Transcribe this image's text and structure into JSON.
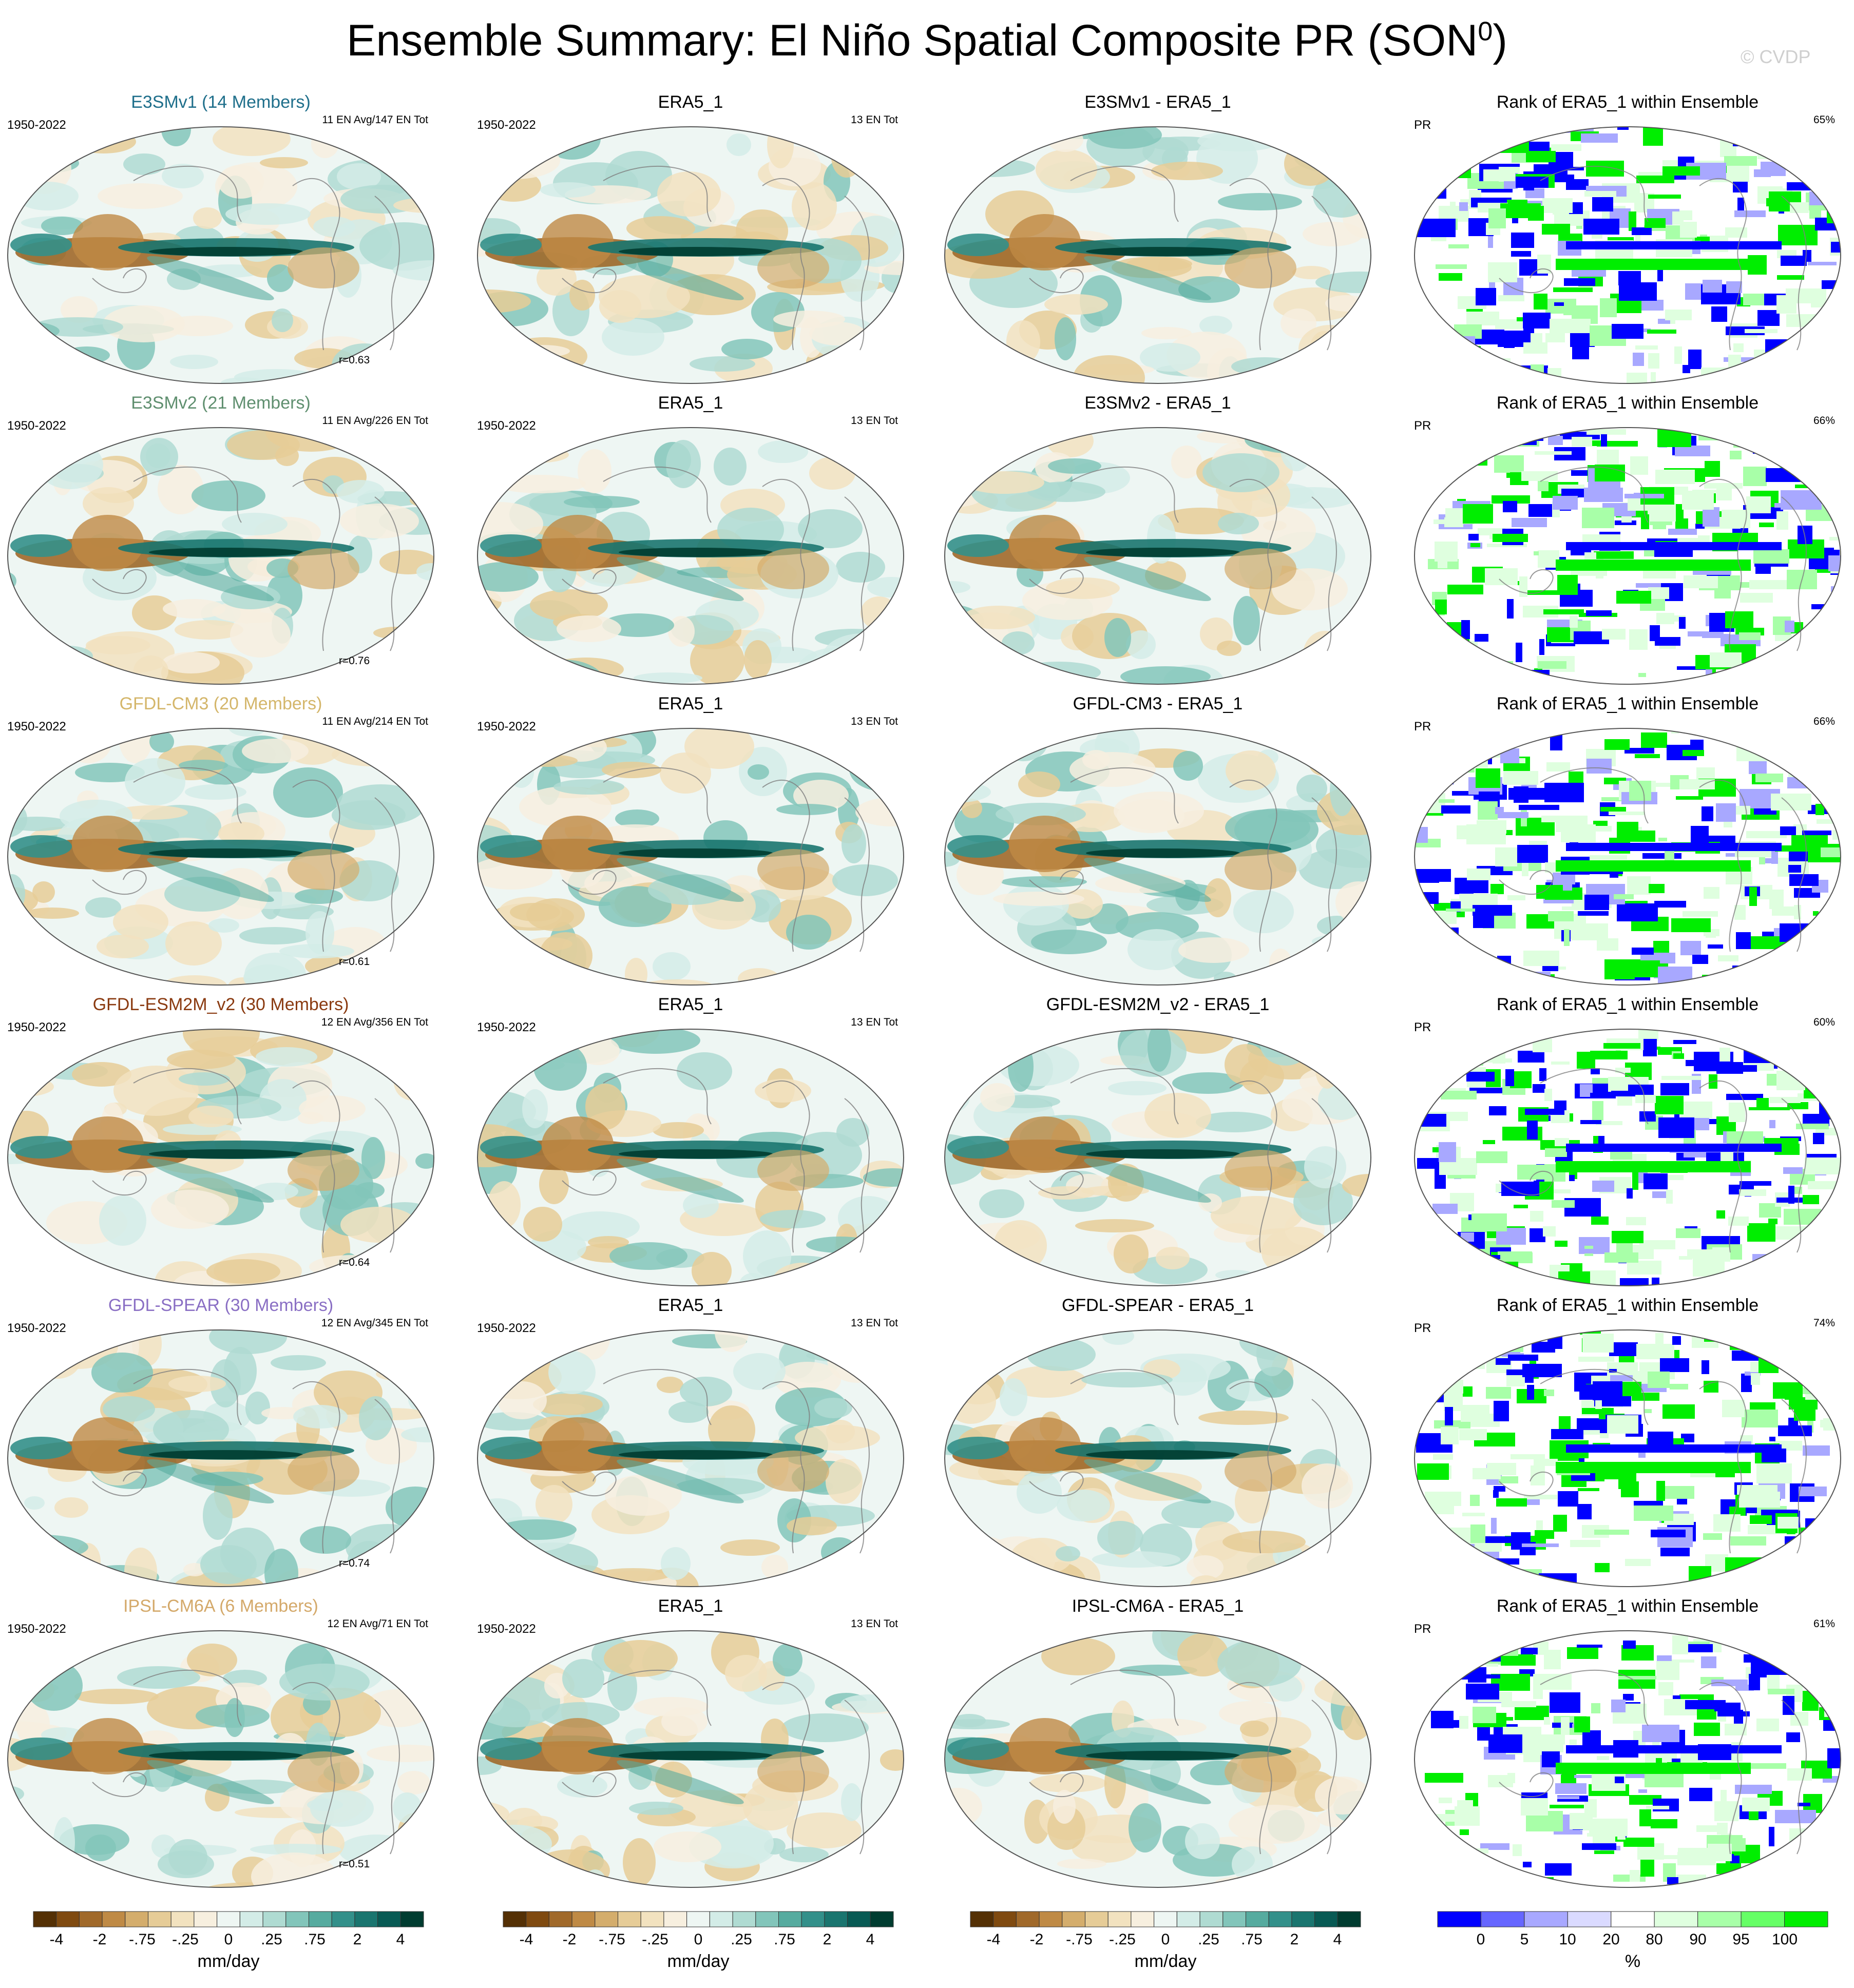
{
  "title_main": "Ensemble Summary: El Niño Spatial Composite PR (SON",
  "title_sup": "0",
  "title_end": ")",
  "watermark": "© CVDP",
  "rows": [
    {
      "model": "E3SMv1 (14 Members)",
      "model_color": "#1f6f8b",
      "period": "1950-2022",
      "en_info": "11 EN Avg/147 EN Tot",
      "corr": "r=0.63",
      "obs_title": "ERA5_1",
      "obs_period": "1950-2022",
      "obs_info": "13 EN Tot",
      "diff_title": "E3SMv1 - ERA5_1",
      "rank_title": "Rank of ERA5_1 within Ensemble",
      "rank_var": "PR",
      "rank_pct": "65%"
    },
    {
      "model": "E3SMv2 (21 Members)",
      "model_color": "#5f8f6f",
      "period": "1950-2022",
      "en_info": "11 EN Avg/226 EN Tot",
      "corr": "r=0.76",
      "obs_title": "ERA5_1",
      "obs_period": "1950-2022",
      "obs_info": "13 EN Tot",
      "diff_title": "E3SMv2 - ERA5_1",
      "rank_title": "Rank of ERA5_1 within Ensemble",
      "rank_var": "PR",
      "rank_pct": "66%"
    },
    {
      "model": "GFDL-CM3 (20 Members)",
      "model_color": "#d4b66a",
      "period": "1950-2022",
      "en_info": "11 EN Avg/214 EN Tot",
      "corr": "r=0.61",
      "obs_title": "ERA5_1",
      "obs_period": "1950-2022",
      "obs_info": "13 EN Tot",
      "diff_title": "GFDL-CM3 - ERA5_1",
      "rank_title": "Rank of ERA5_1 within Ensemble",
      "rank_var": "PR",
      "rank_pct": "66%"
    },
    {
      "model": "GFDL-ESM2M_v2 (30 Members)",
      "model_color": "#8a3a10",
      "period": "1950-2022",
      "en_info": "12 EN Avg/356 EN Tot",
      "corr": "r=0.64",
      "obs_title": "ERA5_1",
      "obs_period": "1950-2022",
      "obs_info": "13 EN Tot",
      "diff_title": "GFDL-ESM2M_v2 - ERA5_1",
      "rank_title": "Rank of ERA5_1 within Ensemble",
      "rank_var": "PR",
      "rank_pct": "60%"
    },
    {
      "model": "GFDL-SPEAR (30 Members)",
      "model_color": "#8a6fc4",
      "period": "1950-2022",
      "en_info": "12 EN Avg/345 EN Tot",
      "corr": "r=0.74",
      "obs_title": "ERA5_1",
      "obs_period": "1950-2022",
      "obs_info": "13 EN Tot",
      "diff_title": "GFDL-SPEAR - ERA5_1",
      "rank_title": "Rank of ERA5_1 within Ensemble",
      "rank_var": "PR",
      "rank_pct": "74%"
    },
    {
      "model": "IPSL-CM6A (6 Members)",
      "model_color": "#d4a96a",
      "period": "1950-2022",
      "en_info": "12 EN Avg/71 EN Tot",
      "corr": "r=0.51",
      "obs_title": "ERA5_1",
      "obs_period": "1950-2022",
      "obs_info": "13 EN Tot",
      "diff_title": "IPSL-CM6A - ERA5_1",
      "rank_title": "Rank of ERA5_1 within Ensemble",
      "rank_var": "PR",
      "rank_pct": "61%"
    }
  ],
  "colorbar_pr": {
    "ticks": [
      "-4",
      "-2",
      "-.75",
      "-.25",
      "0",
      ".25",
      ".75",
      "2",
      "4"
    ],
    "unit": "mm/day",
    "colors": [
      "#543005",
      "#7f4a10",
      "#a0692a",
      "#bf8a45",
      "#d4ad6c",
      "#e6cc97",
      "#f2e2bf",
      "#f7efdf",
      "#eef6f3",
      "#d3ece7",
      "#afdbd2",
      "#82c5ba",
      "#56ab9f",
      "#33908a",
      "#1a756f",
      "#085a54",
      "#003c30"
    ]
  },
  "colorbar_rank": {
    "ticks": [
      "0",
      "5",
      "10",
      "20",
      "80",
      "90",
      "95",
      "100"
    ],
    "unit": "%",
    "colors": [
      "#0000ff",
      "#6666ff",
      "#a8a8ff",
      "#dadaff",
      "#ffffff",
      "#dfffdf",
      "#a8ffa8",
      "#66ff66",
      "#00ee00"
    ]
  }
}
